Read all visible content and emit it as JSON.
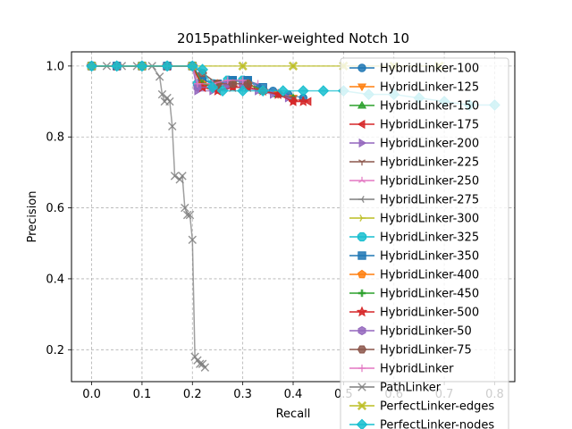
{
  "chart_data": {
    "type": "line",
    "title": "2015pathlinker-weighted Notch 10",
    "xlabel": "Recall",
    "ylabel": "Precision",
    "xlim": [
      -0.04,
      0.84
    ],
    "ylim": [
      0.11,
      1.04
    ],
    "xticks": [
      "0.0",
      "0.1",
      "0.2",
      "0.3",
      "0.4",
      "0.5",
      "0.6",
      "0.7",
      "0.8"
    ],
    "yticks": [
      "0.2",
      "0.4",
      "0.6",
      "0.8",
      "1.0"
    ],
    "grid": true,
    "legend_position": "right",
    "series": [
      {
        "name": "HybridLinker-100",
        "color": "#1f77b4",
        "marker": "circle",
        "x": [
          0.0,
          0.05,
          0.1,
          0.15,
          0.2,
          0.22,
          0.25,
          0.28,
          0.31,
          0.33,
          0.36,
          0.39,
          0.42
        ],
        "y": [
          1.0,
          1.0,
          1.0,
          1.0,
          1.0,
          0.96,
          0.95,
          0.96,
          0.96,
          0.94,
          0.93,
          0.92,
          0.91
        ]
      },
      {
        "name": "HybridLinker-125",
        "color": "#ff7f0e",
        "marker": "triangle-down",
        "x": [
          0.0,
          0.05,
          0.1,
          0.15,
          0.2,
          0.22,
          0.25,
          0.28,
          0.31,
          0.34,
          0.37,
          0.4
        ],
        "y": [
          1.0,
          1.0,
          1.0,
          1.0,
          1.0,
          0.95,
          0.94,
          0.95,
          0.95,
          0.93,
          0.92,
          0.91
        ]
      },
      {
        "name": "HybridLinker-150",
        "color": "#2ca02c",
        "marker": "triangle-up",
        "x": [
          0.0,
          0.05,
          0.1,
          0.15,
          0.2,
          0.22,
          0.25,
          0.28,
          0.31,
          0.34,
          0.37,
          0.4
        ],
        "y": [
          1.0,
          1.0,
          1.0,
          1.0,
          1.0,
          0.95,
          0.94,
          0.95,
          0.95,
          0.93,
          0.92,
          0.91
        ]
      },
      {
        "name": "HybridLinker-175",
        "color": "#d62728",
        "marker": "triangle-left",
        "x": [
          0.0,
          0.05,
          0.1,
          0.15,
          0.2,
          0.22,
          0.25,
          0.28,
          0.31,
          0.34,
          0.37,
          0.4,
          0.43
        ],
        "y": [
          1.0,
          1.0,
          1.0,
          1.0,
          1.0,
          0.94,
          0.93,
          0.94,
          0.94,
          0.93,
          0.92,
          0.9,
          0.9
        ]
      },
      {
        "name": "HybridLinker-200",
        "color": "#9467bd",
        "marker": "triangle-right",
        "x": [
          0.0,
          0.05,
          0.1,
          0.15,
          0.2,
          0.21,
          0.24,
          0.27,
          0.3,
          0.33,
          0.36,
          0.39
        ],
        "y": [
          1.0,
          1.0,
          1.0,
          1.0,
          1.0,
          0.93,
          0.93,
          0.94,
          0.94,
          0.93,
          0.92,
          0.91
        ]
      },
      {
        "name": "HybridLinker-225",
        "color": "#8c564b",
        "marker": "tri-down",
        "x": [
          0.0,
          0.05,
          0.1,
          0.15,
          0.2,
          0.22,
          0.25,
          0.28,
          0.31,
          0.34,
          0.37,
          0.4
        ],
        "y": [
          1.0,
          1.0,
          1.0,
          1.0,
          1.0,
          0.98,
          0.95,
          0.95,
          0.95,
          0.93,
          0.92,
          0.91
        ]
      },
      {
        "name": "HybridLinker-250",
        "color": "#e377c2",
        "marker": "tri-up",
        "x": [
          0.0,
          0.05,
          0.1,
          0.15,
          0.2,
          0.21,
          0.24,
          0.27,
          0.3,
          0.33
        ],
        "y": [
          1.0,
          1.0,
          1.0,
          1.0,
          1.0,
          0.95,
          0.95,
          0.96,
          0.96,
          0.95
        ]
      },
      {
        "name": "HybridLinker-275",
        "color": "#7f7f7f",
        "marker": "tri-left",
        "x": [
          0.0,
          0.05,
          0.1,
          0.15,
          0.2,
          0.21,
          0.24,
          0.27,
          0.3
        ],
        "y": [
          1.0,
          1.0,
          1.0,
          1.0,
          1.0,
          0.95,
          0.95,
          0.95,
          0.96
        ]
      },
      {
        "name": "HybridLinker-300",
        "color": "#bcbd22",
        "marker": "tri-right",
        "x": [
          0.0,
          0.05,
          0.1,
          0.15,
          0.2,
          0.21,
          0.24,
          0.27,
          0.3
        ],
        "y": [
          1.0,
          1.0,
          1.0,
          1.0,
          1.0,
          0.95,
          0.95,
          0.96,
          0.96
        ]
      },
      {
        "name": "HybridLinker-325",
        "color": "#17becf",
        "marker": "octagon",
        "x": [
          0.0,
          0.05,
          0.1,
          0.15,
          0.2,
          0.21,
          0.24,
          0.27,
          0.3
        ],
        "y": [
          1.0,
          1.0,
          1.0,
          1.0,
          1.0,
          0.95,
          0.95,
          0.96,
          0.96
        ]
      },
      {
        "name": "HybridLinker-350",
        "color": "#1f77b4",
        "marker": "square",
        "x": [
          0.0,
          0.05,
          0.1,
          0.15,
          0.2,
          0.22,
          0.25,
          0.28,
          0.31,
          0.34
        ],
        "y": [
          1.0,
          1.0,
          1.0,
          1.0,
          1.0,
          0.96,
          0.95,
          0.96,
          0.96,
          0.94
        ]
      },
      {
        "name": "HybridLinker-400",
        "color": "#ff7f0e",
        "marker": "pentagon",
        "x": [
          0.0,
          0.05,
          0.1,
          0.15,
          0.2,
          0.22,
          0.25,
          0.28,
          0.31,
          0.34
        ],
        "y": [
          1.0,
          1.0,
          1.0,
          1.0,
          1.0,
          0.95,
          0.95,
          0.95,
          0.95,
          0.93
        ]
      },
      {
        "name": "HybridLinker-450",
        "color": "#2ca02c",
        "marker": "plus-filled",
        "x": [
          0.0,
          0.05,
          0.1,
          0.15,
          0.2,
          0.22,
          0.25,
          0.28,
          0.31,
          0.34
        ],
        "y": [
          1.0,
          1.0,
          1.0,
          1.0,
          1.0,
          0.95,
          0.94,
          0.95,
          0.95,
          0.93
        ]
      },
      {
        "name": "HybridLinker-500",
        "color": "#d62728",
        "marker": "star",
        "x": [
          0.0,
          0.05,
          0.1,
          0.15,
          0.2,
          0.22,
          0.25,
          0.28,
          0.31,
          0.34,
          0.37,
          0.4,
          0.42
        ],
        "y": [
          1.0,
          1.0,
          1.0,
          1.0,
          1.0,
          0.94,
          0.93,
          0.94,
          0.94,
          0.93,
          0.92,
          0.9,
          0.9
        ]
      },
      {
        "name": "HybridLinker-50",
        "color": "#9467bd",
        "marker": "hexagon",
        "x": [
          0.0,
          0.05,
          0.1,
          0.15,
          0.2,
          0.21,
          0.24,
          0.27,
          0.3
        ],
        "y": [
          1.0,
          1.0,
          1.0,
          1.0,
          1.0,
          0.94,
          0.94,
          0.95,
          0.95
        ]
      },
      {
        "name": "HybridLinker-75",
        "color": "#8c564b",
        "marker": "hexagon2",
        "x": [
          0.0,
          0.05,
          0.1,
          0.15,
          0.2,
          0.22,
          0.25,
          0.28,
          0.31
        ],
        "y": [
          1.0,
          1.0,
          1.0,
          1.0,
          1.0,
          0.98,
          0.95,
          0.95,
          0.95
        ]
      },
      {
        "name": "HybridLinker",
        "color": "#e377c2",
        "marker": "plus",
        "x": [
          0.0,
          0.05,
          0.1,
          0.15,
          0.2,
          0.21,
          0.24,
          0.27,
          0.3
        ],
        "y": [
          1.0,
          1.0,
          1.0,
          1.0,
          1.0,
          0.95,
          0.95,
          0.96,
          0.96
        ]
      },
      {
        "name": "PathLinker",
        "color": "#7f7f7f",
        "marker": "x",
        "x": [
          0.0,
          0.03,
          0.06,
          0.09,
          0.12,
          0.135,
          0.14,
          0.145,
          0.15,
          0.155,
          0.16,
          0.165,
          0.175,
          0.18,
          0.185,
          0.19,
          0.195,
          0.2,
          0.205,
          0.21,
          0.215,
          0.22,
          0.225
        ],
        "y": [
          1.0,
          1.0,
          1.0,
          1.0,
          1.0,
          0.97,
          0.92,
          0.9,
          0.91,
          0.9,
          0.83,
          0.69,
          0.68,
          0.69,
          0.6,
          0.58,
          0.58,
          0.51,
          0.18,
          0.17,
          0.16,
          0.16,
          0.15
        ]
      },
      {
        "name": "PerfectLinker-edges",
        "color": "#bcbd22",
        "marker": "x-filled",
        "x": [
          0.0,
          0.1,
          0.2,
          0.3,
          0.4,
          0.5,
          0.6,
          0.69
        ],
        "y": [
          1.0,
          1.0,
          1.0,
          1.0,
          1.0,
          1.0,
          1.0,
          1.0
        ]
      },
      {
        "name": "PerfectLinker-nodes",
        "color": "#17becf",
        "marker": "diamond",
        "x": [
          0.0,
          0.05,
          0.1,
          0.15,
          0.2,
          0.22,
          0.24,
          0.26,
          0.3,
          0.34,
          0.38,
          0.42,
          0.46,
          0.5,
          0.55,
          0.6,
          0.65,
          0.7,
          0.75,
          0.8
        ],
        "y": [
          1.0,
          1.0,
          1.0,
          1.0,
          1.0,
          0.99,
          0.94,
          0.93,
          0.93,
          0.93,
          0.93,
          0.93,
          0.93,
          0.93,
          0.92,
          0.92,
          0.91,
          0.9,
          0.89,
          0.89
        ]
      }
    ]
  }
}
